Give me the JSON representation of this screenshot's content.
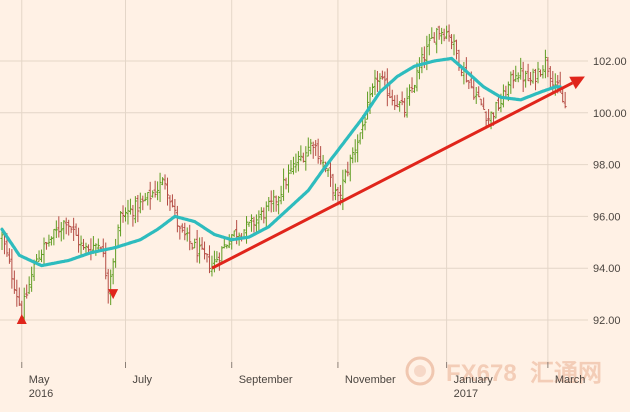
{
  "chart_data": {
    "type": "ohlc",
    "ylim": [
      91,
      103.5
    ],
    "ytick_values": [
      92,
      94,
      96,
      98,
      100,
      102
    ],
    "yticks": [
      "92.00",
      "94.00",
      "96.00",
      "98.00",
      "100.00",
      "102.00"
    ],
    "grid": true,
    "x_months": [
      {
        "label": "May",
        "year": "2016",
        "index": 8
      },
      {
        "label": "July",
        "year": "",
        "index": 50
      },
      {
        "label": "September",
        "year": "",
        "index": 93
      },
      {
        "label": "November",
        "year": "",
        "index": 136
      },
      {
        "label": "January",
        "year": "2017",
        "index": 180
      },
      {
        "label": "March",
        "year": "",
        "index": 221
      }
    ],
    "close_anchors": [
      [
        0,
        95.2
      ],
      [
        8,
        92.3
      ],
      [
        14,
        94.4
      ],
      [
        26,
        95.9
      ],
      [
        33,
        94.7
      ],
      [
        40,
        95.0
      ],
      [
        43,
        93.3
      ],
      [
        48,
        96.0
      ],
      [
        57,
        96.5
      ],
      [
        66,
        97.4
      ],
      [
        72,
        95.4
      ],
      [
        80,
        94.6
      ],
      [
        85,
        94.1
      ],
      [
        93,
        95.3
      ],
      [
        100,
        95.6
      ],
      [
        110,
        96.5
      ],
      [
        118,
        97.9
      ],
      [
        126,
        98.9
      ],
      [
        132,
        97.6
      ],
      [
        136,
        96.6
      ],
      [
        139,
        97.6
      ],
      [
        146,
        99.5
      ],
      [
        152,
        101.4
      ],
      [
        158,
        100.6
      ],
      [
        163,
        100.1
      ],
      [
        170,
        102.0
      ],
      [
        176,
        103.2
      ],
      [
        181,
        103.1
      ],
      [
        185,
        102.0
      ],
      [
        190,
        101.0
      ],
      [
        197,
        99.8
      ],
      [
        202,
        100.4
      ],
      [
        208,
        101.6
      ],
      [
        214,
        101.2
      ],
      [
        220,
        102.0
      ],
      [
        225,
        100.9
      ],
      [
        228,
        100.2
      ]
    ],
    "moving_average_anchors": [
      [
        0,
        95.5
      ],
      [
        7,
        94.5
      ],
      [
        16,
        94.1
      ],
      [
        27,
        94.3
      ],
      [
        36,
        94.6
      ],
      [
        46,
        94.8
      ],
      [
        56,
        95.1
      ],
      [
        63,
        95.5
      ],
      [
        70,
        96.0
      ],
      [
        78,
        95.8
      ],
      [
        86,
        95.3
      ],
      [
        93,
        95.1
      ],
      [
        100,
        95.2
      ],
      [
        108,
        95.6
      ],
      [
        116,
        96.3
      ],
      [
        124,
        97.0
      ],
      [
        130,
        97.8
      ],
      [
        138,
        98.8
      ],
      [
        146,
        99.8
      ],
      [
        153,
        100.8
      ],
      [
        160,
        101.4
      ],
      [
        167,
        101.8
      ],
      [
        175,
        102.0
      ],
      [
        182,
        102.1
      ],
      [
        188,
        101.6
      ],
      [
        195,
        101.0
      ],
      [
        202,
        100.6
      ],
      [
        210,
        100.5
      ],
      [
        218,
        100.8
      ],
      [
        224,
        101.0
      ],
      [
        226,
        101.0
      ]
    ],
    "trendline": {
      "x1": 85,
      "y1": 94.0,
      "x2": 236,
      "y2": 101.4
    },
    "markers": [
      {
        "x": 8,
        "y": 92.0,
        "direction": "up"
      },
      {
        "x": 45,
        "y": 93.0,
        "direction": "down"
      }
    ],
    "colors": {
      "background": "#fff1e5",
      "up_bar": "#5f9c21",
      "down_bar": "#b44c44",
      "moving_average": "#2ebcbe",
      "trendline": "#e0251b",
      "markers": "#e0251b",
      "grid": "#e4d6c8"
    }
  },
  "watermark": {
    "text": "FX678",
    "cjk": "汇通网"
  }
}
